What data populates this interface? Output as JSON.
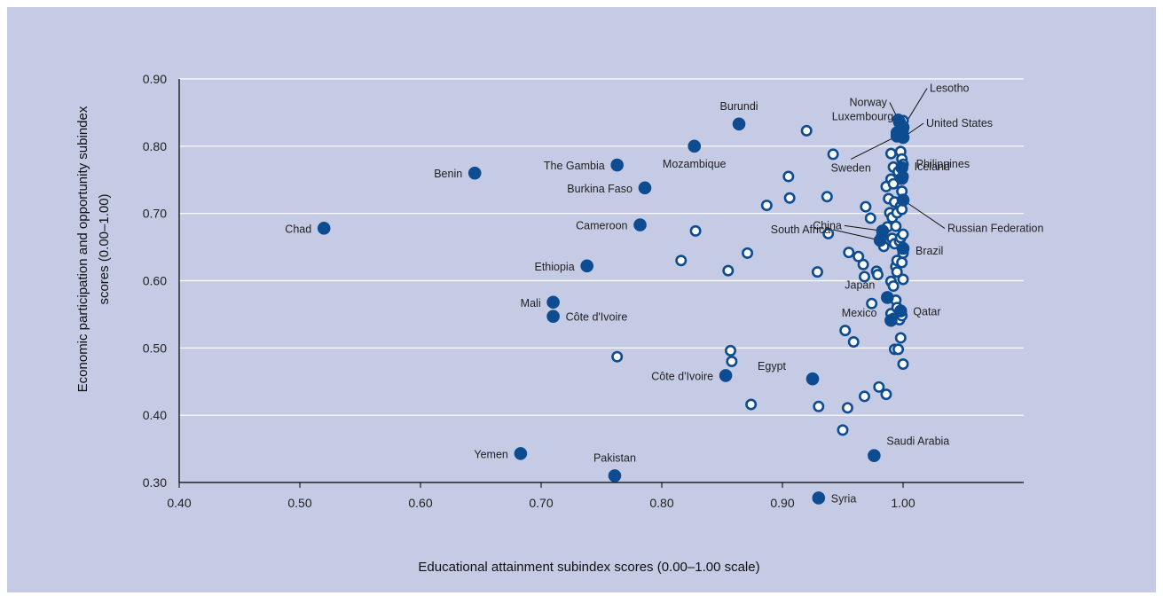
{
  "colors": {
    "background": "#c5cbe5",
    "gridline": "#ffffff",
    "filled_marker": "#0e4c92",
    "hollow_marker_stroke": "#0e4c92",
    "hollow_marker_fill": "#ffffff",
    "axis": "#000000"
  },
  "chart_data": {
    "type": "scatter",
    "title": "",
    "xlabel": "Educational attainment subindex scores (0.00–1.00 scale)",
    "ylabel": "Economic participation and opportunity subindex scores (0.00–1.00)",
    "xlim": [
      0.4,
      1.1
    ],
    "ylim": [
      0.3,
      0.9
    ],
    "x_ticks": [
      "0.40",
      "0.50",
      "0.60",
      "0.70",
      "0.80",
      "0.90",
      "1.00"
    ],
    "y_ticks": [
      "0.30",
      "0.40",
      "0.50",
      "0.60",
      "0.70",
      "0.80",
      "0.90"
    ],
    "grid": "horizontal",
    "labeled_points": [
      {
        "label": "Chad",
        "x": 0.52,
        "y": 0.678
      },
      {
        "label": "Benin",
        "x": 0.645,
        "y": 0.76
      },
      {
        "label": "Yemen",
        "x": 0.683,
        "y": 0.343
      },
      {
        "label": "Mali",
        "x": 0.71,
        "y": 0.568
      },
      {
        "label": "Côte d'Ivoire",
        "x": 0.71,
        "y": 0.547
      },
      {
        "label": "Ethiopia",
        "x": 0.738,
        "y": 0.622
      },
      {
        "label": "Pakistan",
        "x": 0.761,
        "y": 0.31
      },
      {
        "label": "The Gambia",
        "x": 0.763,
        "y": 0.772
      },
      {
        "label": "Cameroon",
        "x": 0.782,
        "y": 0.683
      },
      {
        "label": "Burkina Faso",
        "x": 0.786,
        "y": 0.738
      },
      {
        "label": "Mozambique",
        "x": 0.827,
        "y": 0.8
      },
      {
        "label": "Côte d'Ivoire",
        "x": 0.853,
        "y": 0.459
      },
      {
        "label": "Burundi",
        "x": 0.864,
        "y": 0.833
      },
      {
        "label": "Egypt",
        "x": 0.925,
        "y": 0.454
      },
      {
        "label": "Syria",
        "x": 0.93,
        "y": 0.277
      },
      {
        "label": "Saudi Arabia",
        "x": 0.976,
        "y": 0.34
      },
      {
        "label": "China",
        "x": 0.983,
        "y": 0.674
      },
      {
        "label": "South Africa",
        "x": 0.981,
        "y": 0.66
      },
      {
        "label": "Japan",
        "x": 0.987,
        "y": 0.575
      },
      {
        "label": "Mexico",
        "x": 0.99,
        "y": 0.541
      },
      {
        "label": "Sweden",
        "x": 0.995,
        "y": 0.815
      },
      {
        "label": "Luxembourg",
        "x": 0.995,
        "y": 0.82
      },
      {
        "label": "Norway",
        "x": 0.997,
        "y": 0.836
      },
      {
        "label": "Lesotho",
        "x": 1.0,
        "y": 0.828
      },
      {
        "label": "United States",
        "x": 1.0,
        "y": 0.813
      },
      {
        "label": "Philippines",
        "x": 0.999,
        "y": 0.768
      },
      {
        "label": "Iceland",
        "x": 0.999,
        "y": 0.752
      },
      {
        "label": "Russian Federation",
        "x": 1.0,
        "y": 0.72
      },
      {
        "label": "Brazil",
        "x": 1.0,
        "y": 0.648
      },
      {
        "label": "Qatar",
        "x": 0.998,
        "y": 0.555
      }
    ],
    "unlabeled_points": [
      {
        "x": 0.763,
        "y": 0.487
      },
      {
        "x": 0.816,
        "y": 0.63
      },
      {
        "x": 0.828,
        "y": 0.674
      },
      {
        "x": 0.855,
        "y": 0.615
      },
      {
        "x": 0.857,
        "y": 0.496
      },
      {
        "x": 0.858,
        "y": 0.48
      },
      {
        "x": 0.871,
        "y": 0.641
      },
      {
        "x": 0.874,
        "y": 0.416
      },
      {
        "x": 0.887,
        "y": 0.712
      },
      {
        "x": 0.905,
        "y": 0.755
      },
      {
        "x": 0.906,
        "y": 0.723
      },
      {
        "x": 0.92,
        "y": 0.823
      },
      {
        "x": 0.929,
        "y": 0.613
      },
      {
        "x": 0.93,
        "y": 0.413
      },
      {
        "x": 0.937,
        "y": 0.725
      },
      {
        "x": 0.938,
        "y": 0.67
      },
      {
        "x": 0.942,
        "y": 0.788
      },
      {
        "x": 0.95,
        "y": 0.378
      },
      {
        "x": 0.952,
        "y": 0.526
      },
      {
        "x": 0.954,
        "y": 0.411
      },
      {
        "x": 0.955,
        "y": 0.642
      },
      {
        "x": 0.959,
        "y": 0.509
      },
      {
        "x": 0.963,
        "y": 0.636
      },
      {
        "x": 0.967,
        "y": 0.624
      },
      {
        "x": 0.968,
        "y": 0.428
      },
      {
        "x": 0.968,
        "y": 0.606
      },
      {
        "x": 0.969,
        "y": 0.71
      },
      {
        "x": 0.973,
        "y": 0.693
      },
      {
        "x": 0.974,
        "y": 0.566
      },
      {
        "x": 0.978,
        "y": 0.614
      },
      {
        "x": 0.979,
        "y": 0.609
      },
      {
        "x": 0.98,
        "y": 0.442
      },
      {
        "x": 0.982,
        "y": 0.665
      },
      {
        "x": 0.984,
        "y": 0.651
      },
      {
        "x": 0.986,
        "y": 0.431
      },
      {
        "x": 0.986,
        "y": 0.74
      },
      {
        "x": 0.987,
        "y": 0.68
      },
      {
        "x": 0.988,
        "y": 0.722
      },
      {
        "x": 0.989,
        "y": 0.701
      },
      {
        "x": 0.99,
        "y": 0.789
      },
      {
        "x": 0.99,
        "y": 0.751
      },
      {
        "x": 0.99,
        "y": 0.599
      },
      {
        "x": 0.99,
        "y": 0.551
      },
      {
        "x": 0.991,
        "y": 0.694
      },
      {
        "x": 0.991,
        "y": 0.663
      },
      {
        "x": 0.992,
        "y": 0.769
      },
      {
        "x": 0.992,
        "y": 0.744
      },
      {
        "x": 0.992,
        "y": 0.592
      },
      {
        "x": 0.992,
        "y": 0.544
      },
      {
        "x": 0.993,
        "y": 0.717
      },
      {
        "x": 0.993,
        "y": 0.655
      },
      {
        "x": 0.993,
        "y": 0.498
      },
      {
        "x": 0.994,
        "y": 0.681
      },
      {
        "x": 0.994,
        "y": 0.621
      },
      {
        "x": 0.994,
        "y": 0.571
      },
      {
        "x": 0.995,
        "y": 0.63
      },
      {
        "x": 0.995,
        "y": 0.613
      },
      {
        "x": 0.995,
        "y": 0.56
      },
      {
        "x": 0.995,
        "y": 0.701
      },
      {
        "x": 0.996,
        "y": 0.84
      },
      {
        "x": 0.996,
        "y": 0.762
      },
      {
        "x": 0.996,
        "y": 0.498
      },
      {
        "x": 0.997,
        "y": 0.659
      },
      {
        "x": 0.997,
        "y": 0.542
      },
      {
        "x": 0.998,
        "y": 0.792
      },
      {
        "x": 0.998,
        "y": 0.711
      },
      {
        "x": 0.998,
        "y": 0.664
      },
      {
        "x": 0.998,
        "y": 0.515
      },
      {
        "x": 0.999,
        "y": 0.781
      },
      {
        "x": 0.999,
        "y": 0.733
      },
      {
        "x": 0.999,
        "y": 0.706
      },
      {
        "x": 0.999,
        "y": 0.627
      },
      {
        "x": 0.999,
        "y": 0.548
      },
      {
        "x": 1.0,
        "y": 0.838
      },
      {
        "x": 1.0,
        "y": 0.823
      },
      {
        "x": 1.0,
        "y": 0.773
      },
      {
        "x": 1.0,
        "y": 0.755
      },
      {
        "x": 1.0,
        "y": 0.669
      },
      {
        "x": 1.0,
        "y": 0.641
      },
      {
        "x": 1.0,
        "y": 0.602
      },
      {
        "x": 1.0,
        "y": 0.476
      }
    ]
  }
}
